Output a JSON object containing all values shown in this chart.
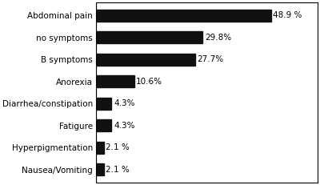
{
  "categories": [
    "Abdominal pain",
    "no symptoms",
    "B symptoms",
    "Anorexia",
    "Diarrhea/constipation",
    "Fatigure",
    "Hyperpigmentation",
    "Nausea/Vomiting"
  ],
  "values": [
    48.9,
    29.8,
    27.7,
    10.6,
    4.3,
    4.3,
    2.1,
    2.1
  ],
  "labels": [
    "48.9 %",
    "29.8%",
    "27.7%",
    "10.6%",
    "4.3%",
    "4.3%",
    "2.1 %",
    "2.1 %"
  ],
  "bar_color": "#111111",
  "background_color": "#ffffff",
  "xlim": [
    0,
    62
  ],
  "figsize": [
    4.0,
    2.31
  ],
  "dpi": 100,
  "label_fontsize": 7.5,
  "tick_fontsize": 7.5,
  "bar_height": 0.55
}
